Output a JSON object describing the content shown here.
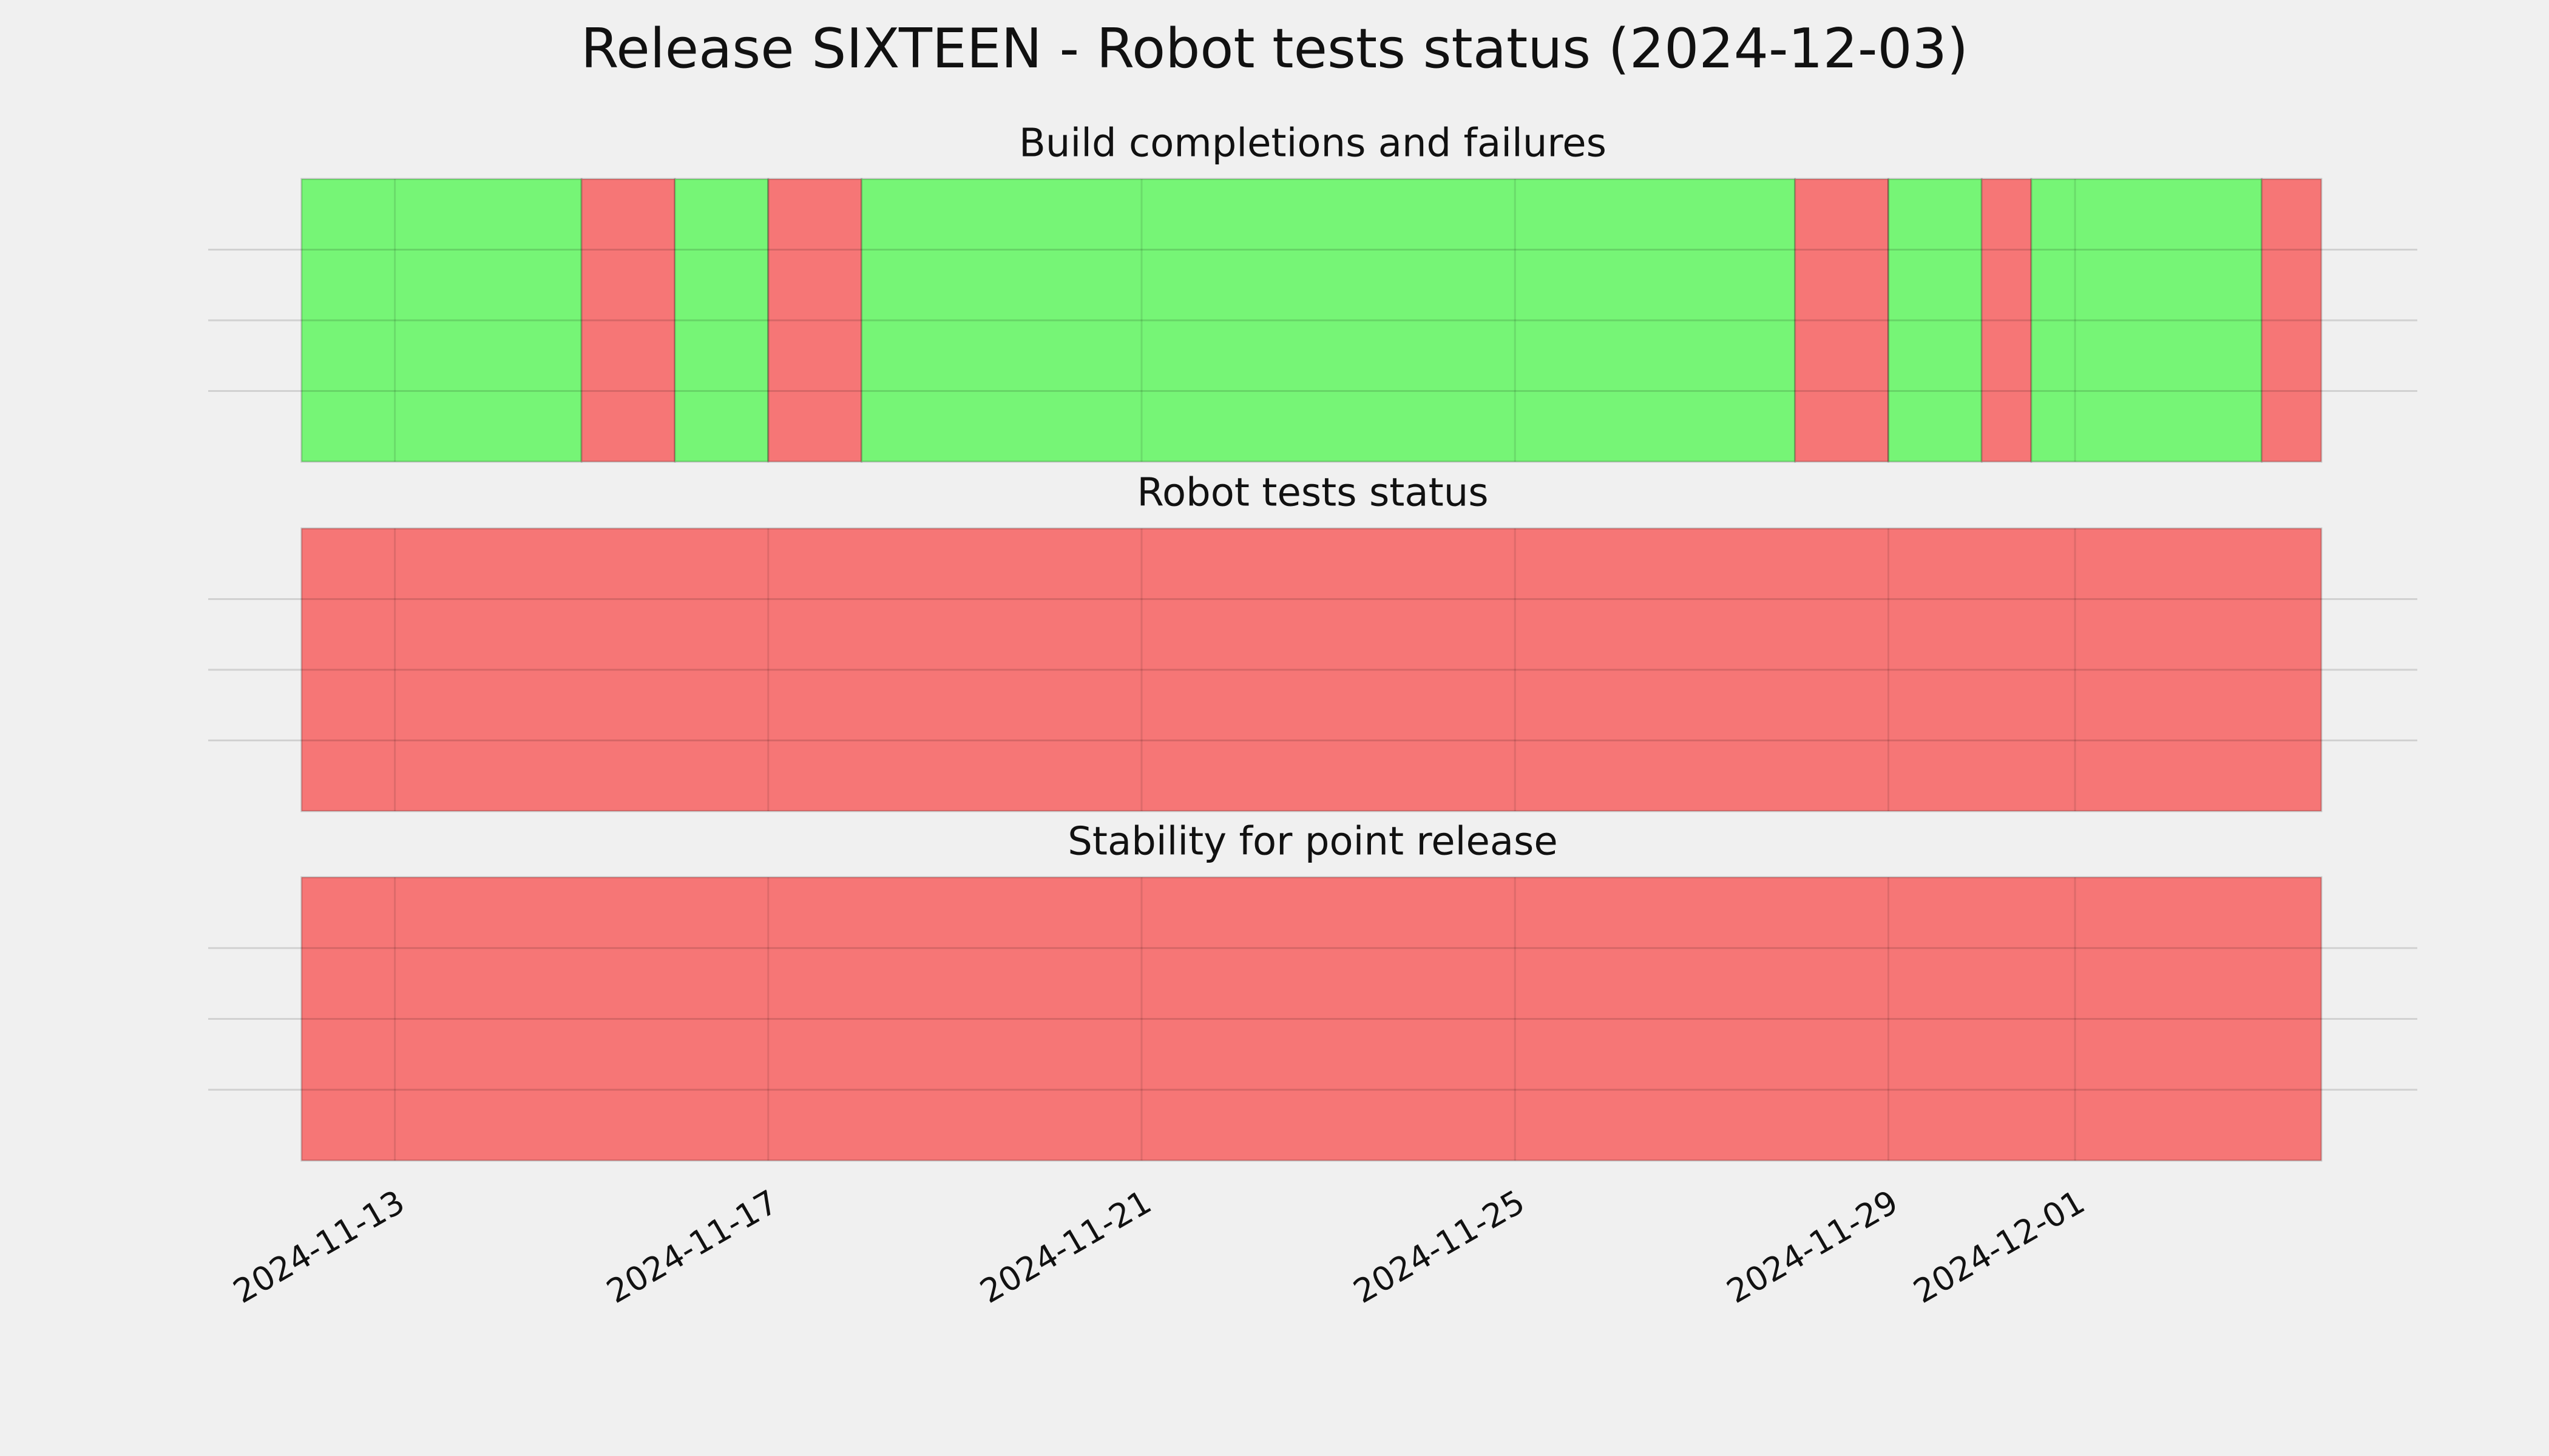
{
  "title": "Release SIXTEEN - Robot tests status (2024-12-03)",
  "chart_data": [
    {
      "type": "timeline",
      "title": "Build completions and failures",
      "xlim": [
        "2024-11-11T00:00",
        "2024-12-04T16:00"
      ],
      "xticks": [
        "2024-11-13",
        "2024-11-17",
        "2024-11-21",
        "2024-11-25",
        "2024-11-29",
        "2024-12-01"
      ],
      "ylim": [
        0,
        1
      ],
      "yticks": [
        0.25,
        0.5,
        0.75
      ],
      "grid": true,
      "show_xtick_labels": false,
      "periods": [
        {
          "start": "2024-11-12T00:00",
          "end": "2024-11-15T00:00",
          "color": "#76f576"
        },
        {
          "start": "2024-11-15T00:00",
          "end": "2024-11-16T00:00",
          "color": "#f67676"
        },
        {
          "start": "2024-11-16T00:00",
          "end": "2024-11-17T00:00",
          "color": "#76f576"
        },
        {
          "start": "2024-11-17T00:00",
          "end": "2024-11-18T00:00",
          "color": "#f67676"
        },
        {
          "start": "2024-11-18T00:00",
          "end": "2024-11-28T00:00",
          "color": "#76f576"
        },
        {
          "start": "2024-11-28T00:00",
          "end": "2024-11-29T00:00",
          "color": "#f67676"
        },
        {
          "start": "2024-11-29T00:00",
          "end": "2024-11-30T00:00",
          "color": "#76f576"
        },
        {
          "start": "2024-11-30T00:00",
          "end": "2024-11-30T12:45",
          "color": "#f67676"
        },
        {
          "start": "2024-11-30T12:45",
          "end": "2024-12-03T00:00",
          "color": "#76f576"
        },
        {
          "start": "2024-12-03T00:00",
          "end": "2024-12-03T15:20",
          "color": "#f67676"
        }
      ]
    },
    {
      "type": "timeline",
      "title": "Robot tests status",
      "xlim": [
        "2024-11-11T00:00",
        "2024-12-04T16:00"
      ],
      "xticks": [
        "2024-11-13",
        "2024-11-17",
        "2024-11-21",
        "2024-11-25",
        "2024-11-29",
        "2024-12-01"
      ],
      "ylim": [
        0,
        1
      ],
      "yticks": [
        0.25,
        0.5,
        0.75
      ],
      "grid": true,
      "show_xtick_labels": false,
      "periods": [
        {
          "start": "2024-11-12T00:00",
          "end": "2024-12-03T15:20",
          "color": "#f67676"
        }
      ]
    },
    {
      "type": "timeline",
      "title": "Stability for point release",
      "xlim": [
        "2024-11-11T00:00",
        "2024-12-04T16:00"
      ],
      "xticks": [
        "2024-11-13",
        "2024-11-17",
        "2024-11-21",
        "2024-11-25",
        "2024-11-29",
        "2024-12-01"
      ],
      "ylim": [
        0,
        1
      ],
      "yticks": [
        0.25,
        0.5,
        0.75
      ],
      "grid": true,
      "show_xtick_labels": true,
      "periods": [
        {
          "start": "2024-11-12T00:00",
          "end": "2024-12-03T15:20",
          "color": "#f67676"
        }
      ]
    }
  ]
}
